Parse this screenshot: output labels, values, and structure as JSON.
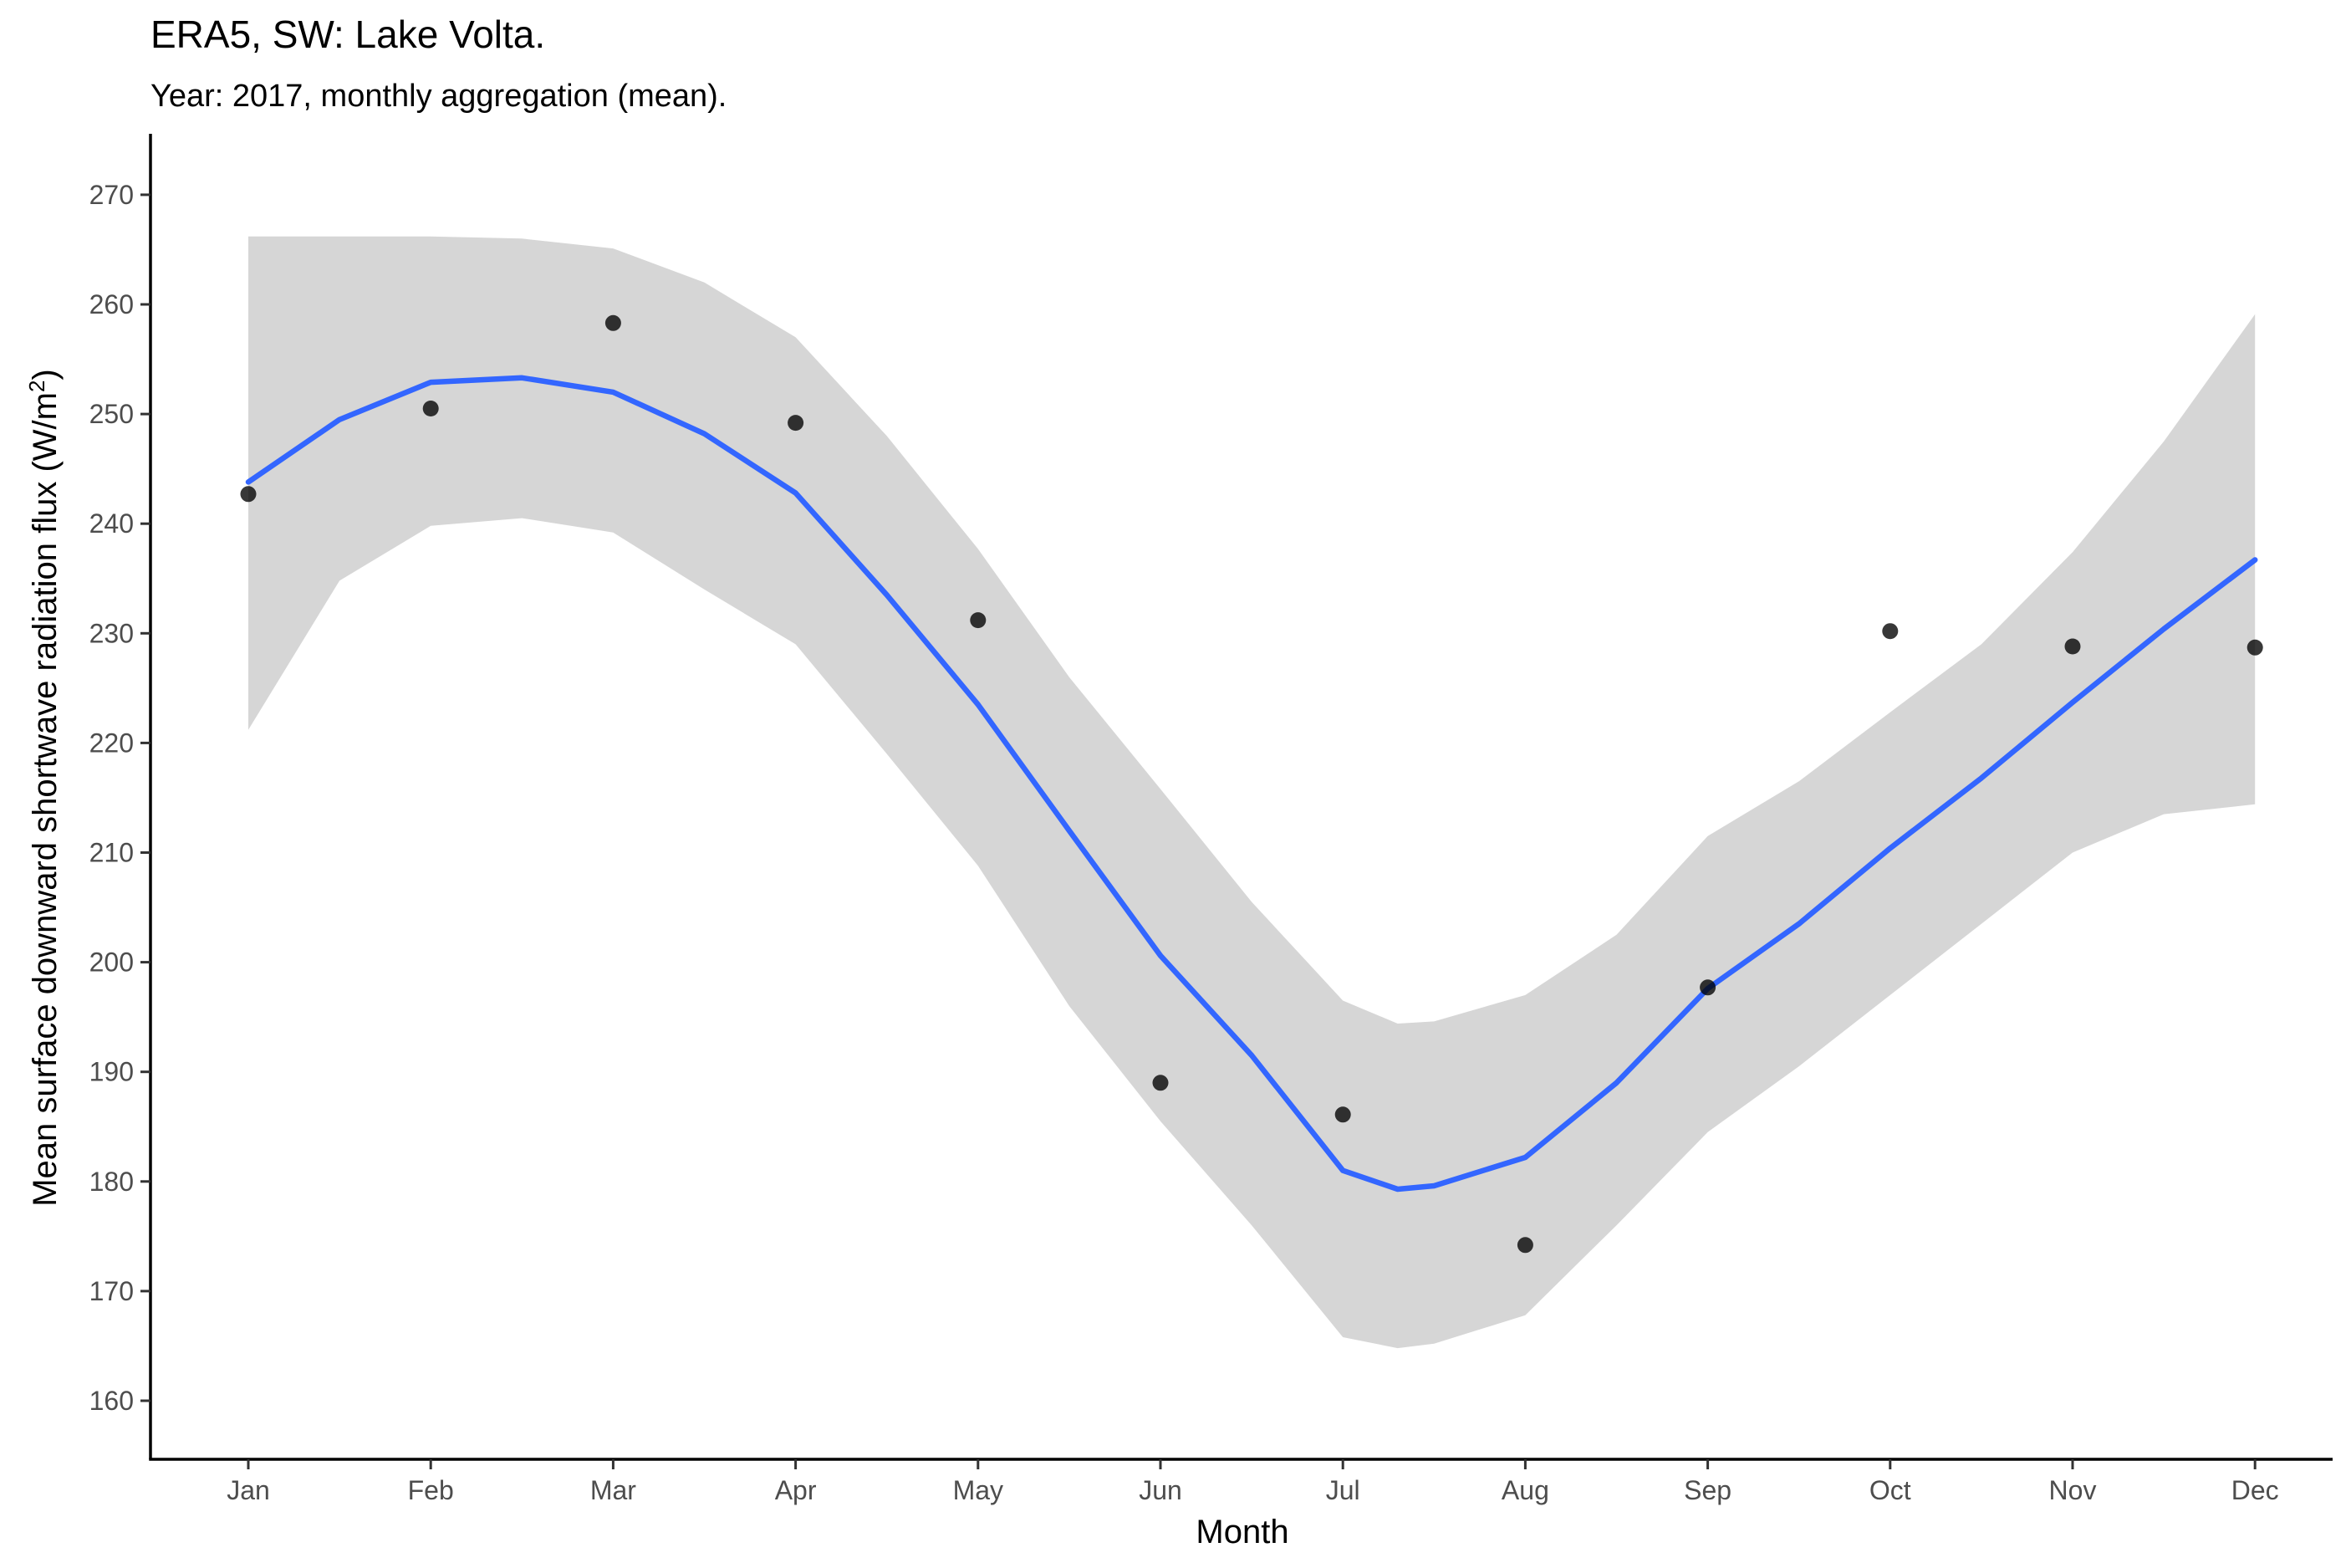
{
  "chart_data": {
    "type": "scatter",
    "title": "ERA5, SW: Lake Volta.",
    "subtitle": "Year: 2017, monthly aggregation (mean).",
    "xlabel": "Month",
    "ylabel": "Mean surface downward shortwave radiation flux (W/m²)",
    "ylabel_main": "Mean surface downward shortwave radiation flux (W/m",
    "ylabel_sup": "2",
    "ylabel_end": ")",
    "categories": [
      "Jan",
      "Feb",
      "Mar",
      "Apr",
      "May",
      "Jun",
      "Jul",
      "Aug",
      "Sep",
      "Oct",
      "Nov",
      "Dec"
    ],
    "ylim": [
      155,
      275
    ],
    "yticks": [
      160,
      170,
      180,
      190,
      200,
      210,
      220,
      230,
      240,
      250,
      260,
      270
    ],
    "grid": false,
    "legend": "none",
    "points": [
      {
        "x": "Jan",
        "y": 242.7
      },
      {
        "x": "Feb",
        "y": 250.5
      },
      {
        "x": "Mar",
        "y": 258.3
      },
      {
        "x": "Apr",
        "y": 249.2
      },
      {
        "x": "May",
        "y": 231.2
      },
      {
        "x": "Jun",
        "y": 189.0
      },
      {
        "x": "Jul",
        "y": 186.1
      },
      {
        "x": "Aug",
        "y": 174.2
      },
      {
        "x": "Sep",
        "y": 197.7
      },
      {
        "x": "Oct",
        "y": 230.2
      },
      {
        "x": "Nov",
        "y": 228.8
      },
      {
        "x": "Dec",
        "y": 228.7
      }
    ],
    "smooth": {
      "x": [
        1,
        1.5,
        2,
        2.5,
        3,
        3.5,
        4,
        4.5,
        5,
        5.5,
        6,
        6.5,
        7,
        7.3,
        7.5,
        8,
        8.5,
        9,
        9.5,
        10,
        10.5,
        11,
        11.5,
        12
      ],
      "y": [
        243.8,
        249.5,
        252.9,
        253.3,
        252.0,
        248.2,
        242.8,
        233.5,
        223.5,
        212.0,
        200.6,
        191.5,
        181.0,
        179.3,
        179.6,
        182.2,
        189.0,
        197.6,
        203.5,
        210.4,
        216.8,
        223.7,
        230.4,
        236.7
      ],
      "lower": [
        221.2,
        234.8,
        239.8,
        240.5,
        239.2,
        234.0,
        229.0,
        219.0,
        208.8,
        196.0,
        185.5,
        176.0,
        165.8,
        164.8,
        165.2,
        167.8,
        176.0,
        184.5,
        190.5,
        197.0,
        203.5,
        210.0,
        213.5,
        214.4
      ],
      "upper": [
        266.2,
        266.2,
        266.2,
        266.0,
        265.1,
        262.0,
        257.0,
        248.0,
        237.7,
        226.0,
        215.8,
        205.5,
        196.5,
        194.4,
        194.6,
        197.0,
        202.5,
        211.5,
        216.5,
        222.8,
        229.0,
        237.4,
        247.5,
        259.1
      ]
    },
    "colors": {
      "line": "#3366FF",
      "ribbon": "#D6D6D6",
      "points": "#000000",
      "axis": "#000000"
    }
  }
}
